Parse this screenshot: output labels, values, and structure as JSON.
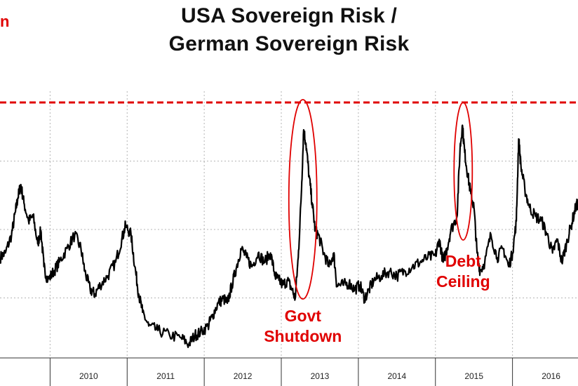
{
  "chart_data": {
    "type": "line",
    "title": "USA Sovereign Risk / German Sovereign Risk",
    "title_lines": [
      "USA Sovereign Risk /",
      "German Sovereign Risk"
    ],
    "corner_label": "n",
    "xlabel": "",
    "ylabel": "",
    "x_ticks": [
      "2010",
      "2011",
      "2012",
      "2013",
      "2014",
      "2015",
      "2016"
    ],
    "xlim": [
      2009.35,
      2016.85
    ],
    "ylim": [
      0.2,
      3.2
    ],
    "grid": true,
    "reference_line": {
      "y": 3.0,
      "color": "#e00000",
      "style": "dashed"
    },
    "series": [
      {
        "color": "#000000",
        "points": [
          [
            2009.35,
            1.3
          ],
          [
            2009.42,
            1.35
          ],
          [
            2009.5,
            1.55
          ],
          [
            2009.55,
            1.8
          ],
          [
            2009.58,
            1.95
          ],
          [
            2009.62,
            2.1
          ],
          [
            2009.66,
            1.9
          ],
          [
            2009.72,
            1.7
          ],
          [
            2009.78,
            1.75
          ],
          [
            2009.84,
            1.45
          ],
          [
            2009.88,
            1.6
          ],
          [
            2009.92,
            1.2
          ],
          [
            2009.97,
            1.05
          ],
          [
            2010.05,
            1.15
          ],
          [
            2010.12,
            1.25
          ],
          [
            2010.22,
            1.4
          ],
          [
            2010.32,
            1.55
          ],
          [
            2010.4,
            1.4
          ],
          [
            2010.45,
            1.15
          ],
          [
            2010.52,
            0.95
          ],
          [
            2010.58,
            0.9
          ],
          [
            2010.65,
            1.0
          ],
          [
            2010.75,
            1.1
          ],
          [
            2010.85,
            1.25
          ],
          [
            2010.93,
            1.5
          ],
          [
            2010.98,
            1.65
          ],
          [
            2011.05,
            1.55
          ],
          [
            2011.1,
            1.2
          ],
          [
            2011.15,
            0.9
          ],
          [
            2011.2,
            0.7
          ],
          [
            2011.28,
            0.55
          ],
          [
            2011.4,
            0.5
          ],
          [
            2011.55,
            0.45
          ],
          [
            2011.7,
            0.42
          ],
          [
            2011.8,
            0.35
          ],
          [
            2011.88,
            0.45
          ],
          [
            2011.95,
            0.48
          ],
          [
            2012.05,
            0.55
          ],
          [
            2012.1,
            0.65
          ],
          [
            2012.18,
            0.8
          ],
          [
            2012.25,
            0.85
          ],
          [
            2012.3,
            0.8
          ],
          [
            2012.36,
            1.0
          ],
          [
            2012.42,
            1.2
          ],
          [
            2012.48,
            1.4
          ],
          [
            2012.55,
            1.3
          ],
          [
            2012.62,
            1.2
          ],
          [
            2012.7,
            1.35
          ],
          [
            2012.78,
            1.25
          ],
          [
            2012.86,
            1.35
          ],
          [
            2012.92,
            1.1
          ],
          [
            2012.97,
            1.05
          ],
          [
            2013.02,
            1.0
          ],
          [
            2013.08,
            1.05
          ],
          [
            2013.14,
            0.95
          ],
          [
            2013.18,
            0.85
          ],
          [
            2013.22,
            1.3
          ],
          [
            2013.26,
            2.0
          ],
          [
            2013.29,
            2.7
          ],
          [
            2013.32,
            2.55
          ],
          [
            2013.36,
            2.2
          ],
          [
            2013.4,
            1.9
          ],
          [
            2013.44,
            1.6
          ],
          [
            2013.48,
            1.55
          ],
          [
            2013.55,
            1.35
          ],
          [
            2013.62,
            1.2
          ],
          [
            2013.68,
            1.35
          ],
          [
            2013.72,
            1.0
          ],
          [
            2013.8,
            1.0
          ],
          [
            2013.88,
            1.02
          ],
          [
            2013.95,
            0.95
          ],
          [
            2014.02,
            1.0
          ],
          [
            2014.08,
            0.85
          ],
          [
            2014.14,
            0.95
          ],
          [
            2014.2,
            1.05
          ],
          [
            2014.3,
            1.1
          ],
          [
            2014.4,
            1.15
          ],
          [
            2014.5,
            1.1
          ],
          [
            2014.6,
            1.15
          ],
          [
            2014.7,
            1.2
          ],
          [
            2014.8,
            1.25
          ],
          [
            2014.9,
            1.3
          ],
          [
            2015.0,
            1.32
          ],
          [
            2015.05,
            1.5
          ],
          [
            2015.1,
            1.25
          ],
          [
            2015.15,
            1.4
          ],
          [
            2015.2,
            1.6
          ],
          [
            2015.28,
            1.75
          ],
          [
            2015.32,
            2.5
          ],
          [
            2015.35,
            2.75
          ],
          [
            2015.38,
            2.45
          ],
          [
            2015.42,
            2.2
          ],
          [
            2015.46,
            2.0
          ],
          [
            2015.5,
            1.85
          ],
          [
            2015.54,
            1.35
          ],
          [
            2015.58,
            1.15
          ],
          [
            2015.64,
            1.25
          ],
          [
            2015.72,
            1.55
          ],
          [
            2015.8,
            1.3
          ],
          [
            2015.88,
            1.4
          ],
          [
            2015.95,
            1.2
          ],
          [
            2016.0,
            1.35
          ],
          [
            2016.05,
            1.7
          ],
          [
            2016.08,
            2.6
          ],
          [
            2016.11,
            2.3
          ],
          [
            2016.16,
            2.05
          ],
          [
            2016.22,
            1.85
          ],
          [
            2016.3,
            1.75
          ],
          [
            2016.38,
            1.7
          ],
          [
            2016.45,
            1.55
          ],
          [
            2016.52,
            1.35
          ],
          [
            2016.58,
            1.5
          ],
          [
            2016.64,
            1.25
          ],
          [
            2016.7,
            1.45
          ],
          [
            2016.76,
            1.65
          ],
          [
            2016.82,
            1.85
          ],
          [
            2016.85,
            1.9
          ]
        ]
      }
    ],
    "annotations": [
      {
        "lines": [
          "Govt",
          "Shutdown"
        ],
        "color": "#e00000",
        "x": 2013.28
      },
      {
        "lines": [
          "Debt",
          "Ceiling"
        ],
        "color": "#e00000",
        "x": 2015.36
      }
    ]
  }
}
